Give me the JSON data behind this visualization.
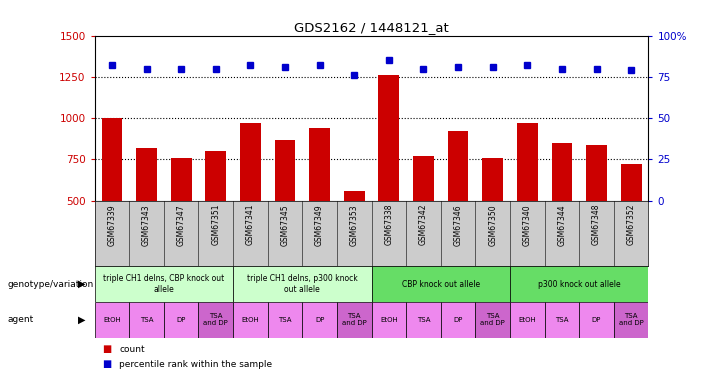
{
  "title": "GDS2162 / 1448121_at",
  "samples": [
    "GSM67339",
    "GSM67343",
    "GSM67347",
    "GSM67351",
    "GSM67341",
    "GSM67345",
    "GSM67349",
    "GSM67353",
    "GSM67338",
    "GSM67342",
    "GSM67346",
    "GSM67350",
    "GSM67340",
    "GSM67344",
    "GSM67348",
    "GSM67352"
  ],
  "counts": [
    1000,
    820,
    760,
    800,
    970,
    870,
    940,
    560,
    1260,
    770,
    920,
    760,
    970,
    850,
    840,
    720
  ],
  "percentiles": [
    82,
    80,
    80,
    80,
    82,
    81,
    82,
    76,
    85,
    80,
    81,
    81,
    82,
    80,
    80,
    79
  ],
  "bar_color": "#cc0000",
  "dot_color": "#0000cc",
  "ylim_left": [
    500,
    1500
  ],
  "ylim_right": [
    0,
    100
  ],
  "yticks_left": [
    500,
    750,
    1000,
    1250,
    1500
  ],
  "yticks_right": [
    0,
    25,
    50,
    75,
    100
  ],
  "grid_values": [
    750,
    1000,
    1250
  ],
  "genotype_groups": [
    {
      "label": "triple CH1 delns, CBP knock out\nallele",
      "start": 0,
      "end": 4,
      "color": "#ccffcc"
    },
    {
      "label": "triple CH1 delns, p300 knock\nout allele",
      "start": 4,
      "end": 8,
      "color": "#ccffcc"
    },
    {
      "label": "CBP knock out allele",
      "start": 8,
      "end": 12,
      "color": "#66dd66"
    },
    {
      "label": "p300 knock out allele",
      "start": 12,
      "end": 16,
      "color": "#66dd66"
    }
  ],
  "agent_labels": [
    "EtOH",
    "TSA",
    "DP",
    "TSA\nand DP",
    "EtOH",
    "TSA",
    "DP",
    "TSA\nand DP",
    "EtOH",
    "TSA",
    "DP",
    "TSA\nand DP",
    "EtOH",
    "TSA",
    "DP",
    "TSA\nand DP"
  ],
  "agent_colors": [
    "#ee88ee",
    "#ee88ee",
    "#ee88ee",
    "#cc66cc",
    "#ee88ee",
    "#ee88ee",
    "#ee88ee",
    "#cc66cc",
    "#ee88ee",
    "#ee88ee",
    "#ee88ee",
    "#cc66cc",
    "#ee88ee",
    "#ee88ee",
    "#ee88ee",
    "#cc66cc"
  ],
  "xlabel_color": "#cc0000",
  "ylabel_right_color": "#0000cc",
  "bg_color": "#ffffff",
  "sample_bg_color": "#cccccc"
}
